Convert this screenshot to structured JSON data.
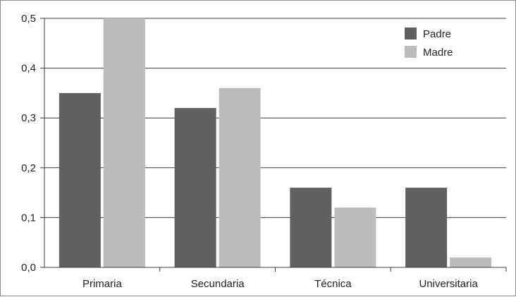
{
  "chart_data": {
    "type": "bar",
    "categories": [
      "Primaria",
      "Secundaria",
      "Técnica",
      "Universitaria"
    ],
    "series": [
      {
        "name": "Padre",
        "values": [
          0.35,
          0.32,
          0.16,
          0.16
        ],
        "color": "#606060"
      },
      {
        "name": "Madre",
        "values": [
          0.5,
          0.36,
          0.12,
          0.02
        ],
        "color": "#bcbcbd"
      }
    ],
    "ylim": [
      0,
      0.5
    ],
    "yticks": [
      "0,0",
      "0,1",
      "0,2",
      "0,3",
      "0,4",
      "0,5"
    ],
    "grid": true,
    "legend": "top-right",
    "title": "",
    "xlabel": "",
    "ylabel": ""
  }
}
